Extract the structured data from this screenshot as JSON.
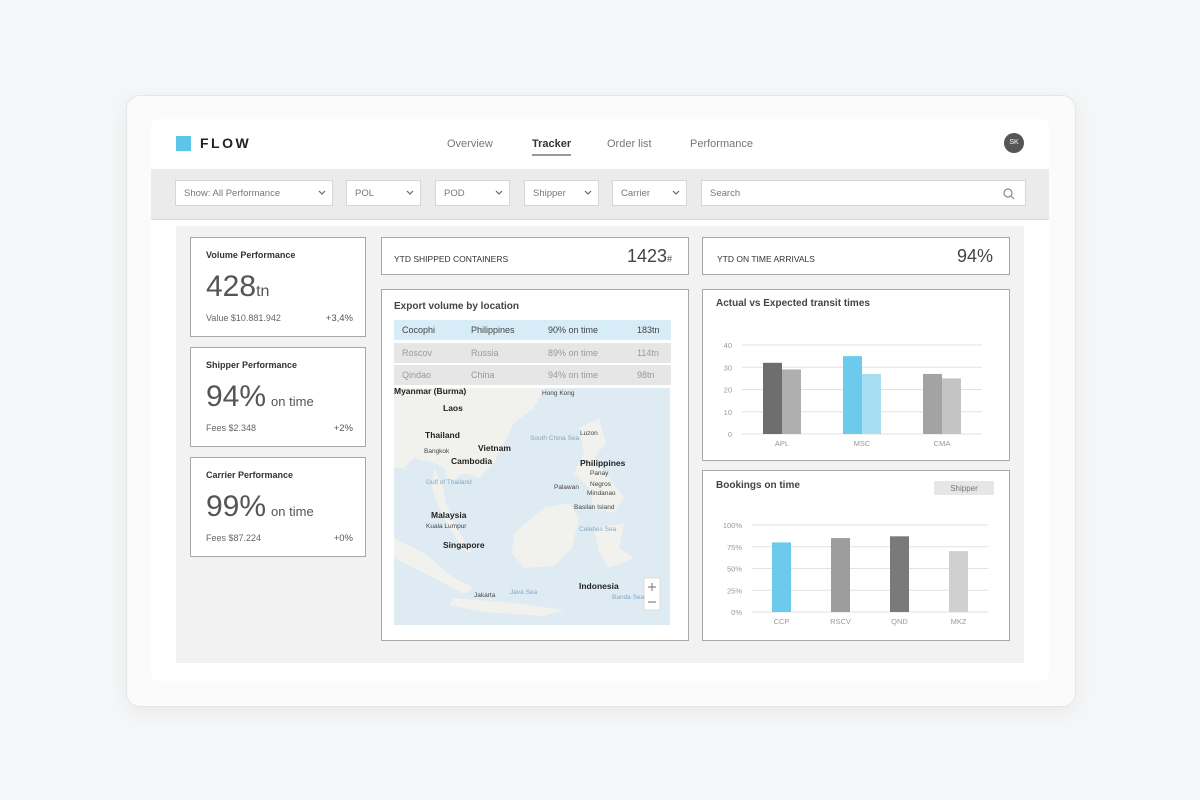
{
  "header": {
    "brand": "FLOW",
    "nav": [
      "Overview",
      "Tracker",
      "Order list",
      "Performance"
    ],
    "active_nav": 1,
    "avatar": "SK"
  },
  "filters": {
    "dropdowns": [
      "Show: All Performance",
      "POL",
      "POD",
      "Shipper",
      "Carrier"
    ],
    "search": "Search"
  },
  "kpi_cards": [
    {
      "title": "Volume Performance",
      "value": "428",
      "unit": "tn",
      "detail": "Value $10.881.942",
      "change": "+3,4%"
    },
    {
      "title": "Shipper Performance",
      "value": "94%",
      "unit": "on time",
      "detail": "Fees $2.348",
      "change": "+2%"
    },
    {
      "title": "Carrier Performance",
      "value": "99%",
      "unit": "on time",
      "detail": "Fees $87.224",
      "change": "+0%"
    }
  ],
  "ytd_shipped": {
    "label": "YTD SHIPPED CONTAINERS",
    "value": "1423",
    "unit": "#"
  },
  "ytd_on_time": {
    "label": "YTD ON TIME ARRIVALS",
    "value": "94%"
  },
  "export_volume": {
    "title": "Export volume by location",
    "rows": [
      [
        "Cocophi",
        "Philippines",
        "90% on time",
        "183tn"
      ],
      [
        "Roscov",
        "Russia",
        "89% on time",
        "114tn"
      ],
      [
        "Qindao",
        "China",
        "94% on time",
        "98tn"
      ]
    ],
    "selected_row": 0,
    "map_labels": [
      "Myanmar (Burma)",
      "Laos",
      "Thailand",
      "Bangkok",
      "Vietnam",
      "Cambodia",
      "Hong Kong",
      "Luzon",
      "South China Sea",
      "Philippines",
      "Panay",
      "Palawan",
      "Negros",
      "Mindanao",
      "Basilan Island",
      "Celebes Sea",
      "Gulf of Thailand",
      "Malaysia",
      "Kuala Lumpur",
      "Singapore",
      "Indonesia",
      "Jakarta",
      "Java Sea",
      "Banda Sea"
    ]
  },
  "transit_chart": {
    "type": "bar",
    "title": "Actual vs Expected transit times",
    "categories": [
      "APL",
      "MSC",
      "CMA"
    ],
    "series": [
      {
        "values": [
          32,
          35,
          27
        ],
        "colors": [
          "#6e6e6e",
          "#6ccbec",
          "#a3a3a3"
        ]
      },
      {
        "values": [
          29,
          27,
          25
        ],
        "colors": [
          "#aeaeae",
          "#a8def2",
          "#c4c4c4"
        ]
      }
    ],
    "ylim": [
      0,
      40
    ],
    "yticks": [
      0,
      10,
      20,
      30,
      40
    ],
    "grid": true
  },
  "bookings_chart": {
    "type": "bar",
    "title": "Bookings on time",
    "filter": "Shipper",
    "categories": [
      "CCP",
      "RSCV",
      "QND",
      "MKZ"
    ],
    "values": [
      80,
      85,
      87,
      70
    ],
    "colors": [
      "#6ccbec",
      "#9d9d9d",
      "#7a7a7a",
      "#d0d0d0"
    ],
    "ylim": [
      0,
      100
    ],
    "yticks": [
      {
        "value": 0,
        "label": "0%"
      },
      {
        "value": 25,
        "label": "25%"
      },
      {
        "value": 50,
        "label": "50%"
      },
      {
        "value": 75,
        "label": "75%"
      },
      {
        "value": 100,
        "label": "100%"
      }
    ],
    "grid": true
  }
}
